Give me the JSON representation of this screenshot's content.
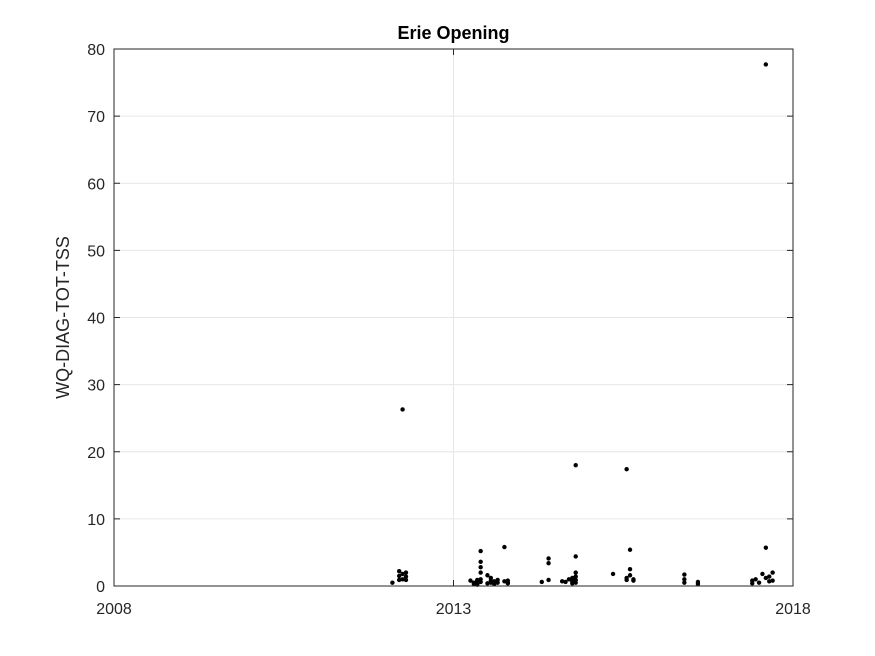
{
  "chart_data": {
    "type": "scatter",
    "title": "Erie Opening",
    "xlabel": "",
    "ylabel": "WQ-DIAG-TOT-TSS",
    "xlim": [
      2008,
      2018
    ],
    "ylim": [
      0,
      80
    ],
    "xticks": [
      2008,
      2013,
      2018
    ],
    "yticks": [
      0,
      10,
      20,
      30,
      40,
      50,
      60,
      70,
      80
    ],
    "grid": true,
    "marker_color": "#000000",
    "x": [
      2012.1,
      2012.2,
      2012.2,
      2012.2,
      2012.25,
      2012.25,
      2012.25,
      2012.3,
      2012.3,
      2012.3,
      2013.25,
      2013.3,
      2013.3,
      2013.35,
      2013.35,
      2013.35,
      2013.35,
      2013.4,
      2013.4,
      2013.4,
      2013.4,
      2013.4,
      2013.4,
      2013.5,
      2013.5,
      2013.55,
      2013.55,
      2013.55,
      2013.6,
      2013.6,
      2013.65,
      2013.65,
      2013.75,
      2013.75,
      2013.8,
      2013.8,
      2013.8,
      2014.3,
      2014.4,
      2014.4,
      2014.4,
      2014.6,
      2014.65,
      2014.7,
      2014.75,
      2014.75,
      2014.75,
      2014.75,
      2014.8,
      2014.8,
      2014.8,
      2014.8,
      2014.8,
      2014.8,
      2015.35,
      2015.55,
      2015.55,
      2015.55,
      2015.6,
      2015.6,
      2015.6,
      2015.65,
      2015.65,
      2016.4,
      2016.4,
      2016.4,
      2016.6,
      2016.6,
      2017.4,
      2017.4,
      2017.45,
      2017.5,
      2017.55,
      2017.6,
      2017.6,
      2017.6,
      2017.65,
      2017.65,
      2017.7,
      2017.7
    ],
    "y": [
      0.5,
      0.9,
      1.5,
      2.2,
      1.0,
      26.3,
      1.8,
      0.9,
      1.4,
      2.0,
      0.8,
      0.3,
      0.5,
      0.7,
      0.4,
      0.9,
      0.2,
      5.2,
      3.6,
      2.8,
      2.0,
      1.0,
      0.6,
      1.6,
      0.4,
      1.2,
      0.8,
      0.5,
      0.7,
      0.3,
      0.9,
      0.5,
      5.8,
      0.7,
      0.4,
      0.8,
      0.5,
      0.6,
      4.1,
      3.4,
      0.9,
      0.7,
      0.6,
      1.0,
      0.8,
      0.4,
      1.2,
      0.6,
      18.0,
      4.4,
      2.0,
      1.4,
      0.9,
      0.5,
      1.8,
      17.4,
      1.2,
      0.9,
      5.4,
      2.5,
      1.6,
      1.0,
      0.8,
      1.7,
      1.0,
      0.5,
      0.6,
      0.3,
      0.8,
      0.4,
      1.0,
      0.5,
      1.8,
      77.7,
      5.7,
      1.2,
      0.7,
      1.4,
      0.8,
      2.0
    ]
  }
}
